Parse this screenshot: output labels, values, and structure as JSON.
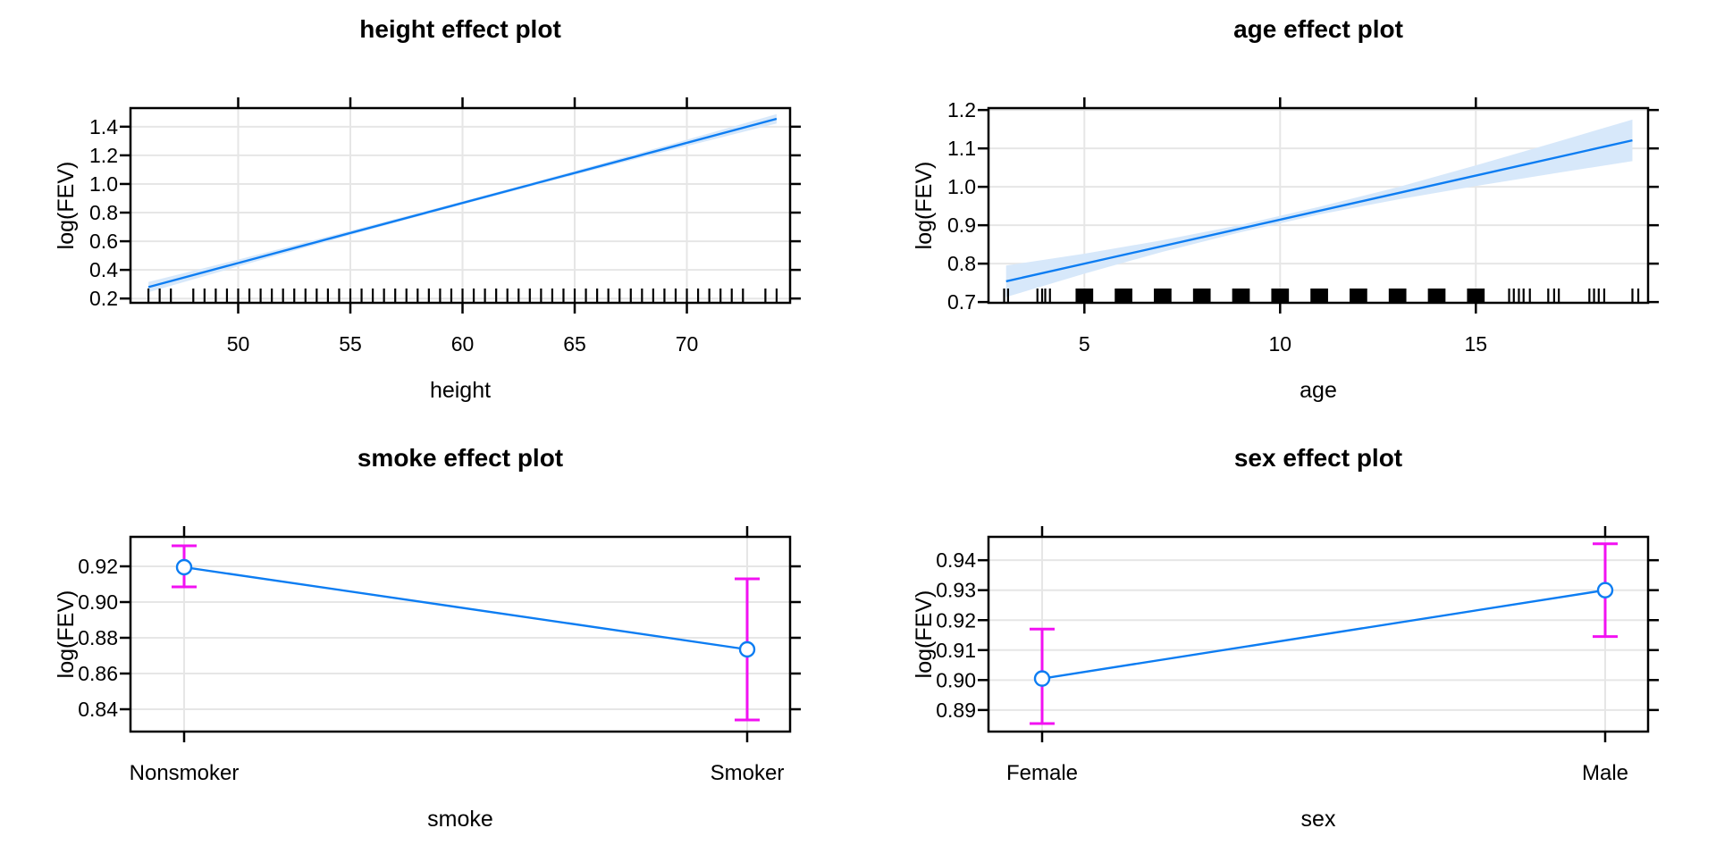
{
  "style": {
    "line_color": "#0d7df2",
    "band_color": "#d7e8fa",
    "error_bar_color": "#f211f2",
    "marker_color": "#0d7df2",
    "grid_color": "#e6e6e6",
    "border_color": "#000000",
    "rug_color": "#000000",
    "text_color": "#000000",
    "background_color": "#ffffff"
  },
  "chart_data": [
    {
      "id": "height",
      "type": "line",
      "title": "height effect plot",
      "xlabel": "height",
      "ylabel": "log(FEV)",
      "xlim": [
        45.2,
        74.6
      ],
      "ylim": [
        0.17,
        1.53
      ],
      "xticks": [
        50,
        55,
        60,
        65,
        70
      ],
      "xtick_labels": [
        "50",
        "55",
        "60",
        "65",
        "70"
      ],
      "yticks": [
        0.2,
        0.4,
        0.6,
        0.8,
        1.0,
        1.2,
        1.4
      ],
      "ytick_labels": [
        "0.2",
        "0.4",
        "0.6",
        "0.8",
        "1.0",
        "1.2",
        "1.4"
      ],
      "grid": true,
      "line": {
        "x": [
          46,
          74
        ],
        "y": [
          0.28,
          1.455
        ]
      },
      "band": {
        "x": [
          46,
          48,
          50,
          52,
          54,
          56,
          58,
          60,
          62,
          64,
          66,
          68,
          70,
          72,
          74
        ],
        "lo": [
          0.244,
          0.334,
          0.424,
          0.512,
          0.6,
          0.687,
          0.772,
          0.857,
          0.94,
          1.023,
          1.104,
          1.185,
          1.265,
          1.344,
          1.422
        ],
        "hi": [
          0.316,
          0.394,
          0.472,
          0.552,
          0.633,
          0.714,
          0.796,
          0.879,
          0.962,
          1.048,
          1.134,
          1.221,
          1.309,
          1.398,
          1.488
        ]
      },
      "rug_lines": [
        46,
        46.5,
        47,
        48,
        48.5,
        49,
        49.5,
        50,
        50.5,
        51,
        51.5,
        52,
        52.5,
        53,
        53.5,
        54,
        54.5,
        55,
        55.5,
        56,
        56.5,
        57,
        57.5,
        58,
        58.5,
        59,
        59.5,
        60,
        60.5,
        61,
        61.5,
        62,
        62.5,
        63,
        63.5,
        64,
        64.5,
        65,
        65.5,
        66,
        66.5,
        67,
        67.5,
        68,
        68.5,
        69,
        69.5,
        70,
        70.5,
        71,
        71.5,
        72,
        72.5,
        73.5,
        74
      ]
    },
    {
      "id": "age",
      "type": "line",
      "title": "age effect plot",
      "xlabel": "age",
      "ylabel": "log(FEV)",
      "xlim": [
        2.55,
        19.4
      ],
      "ylim": [
        0.698,
        1.205
      ],
      "xticks": [
        5,
        10,
        15
      ],
      "xtick_labels": [
        "5",
        "10",
        "15"
      ],
      "yticks": [
        0.7,
        0.8,
        0.9,
        1.0,
        1.1,
        1.2
      ],
      "ytick_labels": [
        "0.7",
        "0.8",
        "0.9",
        "1.0",
        "1.1",
        "1.2"
      ],
      "grid": true,
      "line": {
        "x": [
          3,
          19
        ],
        "y": [
          0.754,
          1.121
        ]
      },
      "band": {
        "x": [
          3,
          5,
          7,
          9,
          11,
          13,
          15,
          17,
          19
        ],
        "lo": [
          0.713,
          0.774,
          0.831,
          0.882,
          0.928,
          0.967,
          1.002,
          1.035,
          1.067
        ],
        "hi": [
          0.795,
          0.826,
          0.861,
          0.901,
          0.948,
          0.999,
          1.056,
          1.115,
          1.175
        ]
      },
      "rug_blocks": {
        "centers": [
          5,
          6,
          7,
          8,
          9,
          10,
          11,
          12,
          13,
          14,
          15
        ],
        "width": 0.45
      },
      "rug_lines": [
        2.95,
        3.05,
        3.8,
        3.92,
        4.0,
        4.12,
        15.85,
        15.97,
        16.1,
        16.22,
        16.38,
        16.85,
        17.0,
        17.12,
        17.9,
        18.02,
        18.14,
        18.28,
        19.0,
        19.15
      ]
    },
    {
      "id": "smoke",
      "type": "categorical",
      "title": "smoke effect plot",
      "xlabel": "smoke",
      "ylabel": "log(FEV)",
      "categories": [
        "Nonsmoker",
        "Smoker"
      ],
      "ylim": [
        0.8275,
        0.9365
      ],
      "yticks": [
        0.84,
        0.86,
        0.88,
        0.9,
        0.92
      ],
      "ytick_labels": [
        "0.84",
        "0.86",
        "0.88",
        "0.90",
        "0.92"
      ],
      "grid": true,
      "points": [
        {
          "category": "Nonsmoker",
          "fit": 0.9195,
          "lower": 0.9085,
          "upper": 0.9315
        },
        {
          "category": "Smoker",
          "fit": 0.8735,
          "lower": 0.834,
          "upper": 0.913
        }
      ]
    },
    {
      "id": "sex",
      "type": "categorical",
      "title": "sex effect plot",
      "xlabel": "sex",
      "ylabel": "log(FEV)",
      "categories": [
        "Female",
        "Male"
      ],
      "ylim": [
        0.8828,
        0.9478
      ],
      "yticks": [
        0.89,
        0.9,
        0.91,
        0.92,
        0.93,
        0.94
      ],
      "ytick_labels": [
        "0.89",
        "0.90",
        "0.91",
        "0.92",
        "0.93",
        "0.94"
      ],
      "grid": true,
      "points": [
        {
          "category": "Female",
          "fit": 0.9005,
          "lower": 0.8855,
          "upper": 0.917
        },
        {
          "category": "Male",
          "fit": 0.93,
          "lower": 0.9145,
          "upper": 0.9455
        }
      ]
    }
  ]
}
